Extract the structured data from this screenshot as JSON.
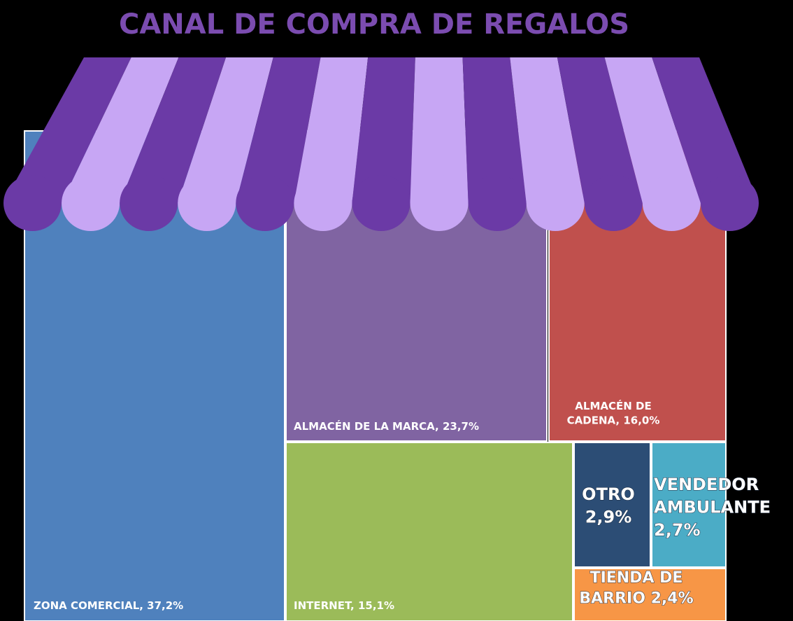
{
  "chart_data": {
    "type": "treemap",
    "title": "CANAL DE COMPRA DE REGALOS",
    "values": [
      37.2,
      23.7,
      16.0,
      15.1,
      2.9,
      2.7,
      2.4
    ],
    "value_labels": [
      "ZONA COMERCIAL, 37,2%",
      "ALMACÉN DE LA MARCA, 23,7%",
      "ALMACÉN DE\nCADENA, 16,0%",
      "INTERNET, 15,1%",
      "OTRO\n2,9%",
      "VENDEDOR\nAMBULANTE\n2,7%",
      "TIENDA DE\nBARRIO 2,4%"
    ],
    "colors": [
      "#4f81bd",
      "#8064a2",
      "#c0504d",
      "#9bbb59",
      "#2c4d75",
      "#4bacc6",
      "#f79646"
    ]
  }
}
